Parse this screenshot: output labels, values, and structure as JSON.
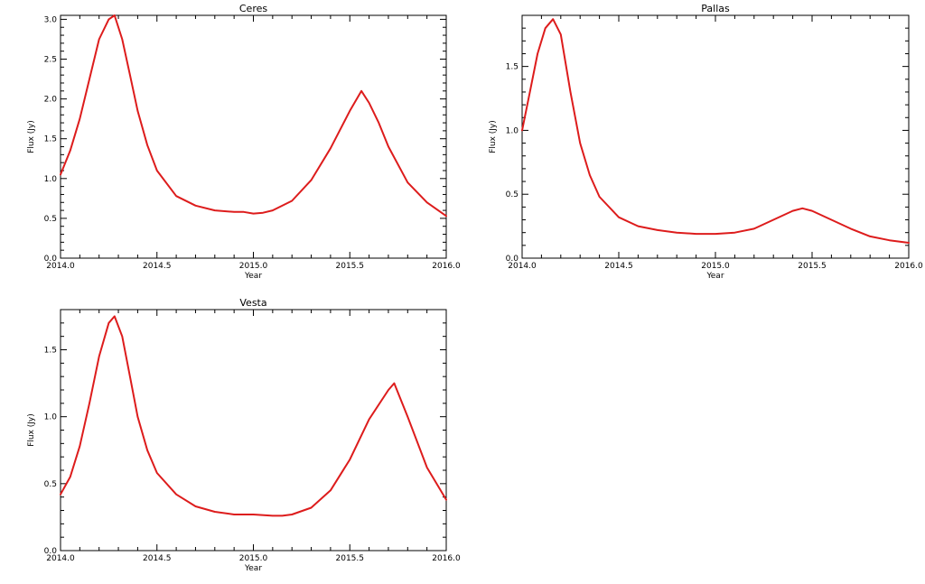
{
  "chart_data": [
    {
      "type": "line",
      "title": "Ceres",
      "xlabel": "Year",
      "ylabel": "Flux (Jy)",
      "xlim": [
        2014.0,
        2016.0
      ],
      "ylim": [
        0.0,
        3.05
      ],
      "xticks": [
        "2014.0",
        "2014.5",
        "2015.0",
        "2015.5",
        "2016.0"
      ],
      "yticks": [
        "0.0",
        "0.5",
        "1.0",
        "1.5",
        "2.0",
        "2.5",
        "3.0"
      ],
      "color": "#dd1c1c",
      "series": [
        {
          "x": [
            2014.0,
            2014.05,
            2014.1,
            2014.15,
            2014.2,
            2014.25,
            2014.28,
            2014.32,
            2014.36,
            2014.4,
            2014.45,
            2014.5,
            2014.6,
            2014.7,
            2014.8,
            2014.9,
            2014.95,
            2015.0,
            2015.05,
            2015.1,
            2015.2,
            2015.3,
            2015.4,
            2015.5,
            2015.56,
            2015.6,
            2015.65,
            2015.7,
            2015.8,
            2015.9,
            2016.0
          ],
          "y": [
            1.05,
            1.35,
            1.75,
            2.25,
            2.75,
            3.0,
            3.05,
            2.75,
            2.3,
            1.85,
            1.42,
            1.1,
            0.78,
            0.66,
            0.6,
            0.58,
            0.58,
            0.56,
            0.57,
            0.6,
            0.72,
            0.98,
            1.38,
            1.85,
            2.1,
            1.95,
            1.7,
            1.4,
            0.95,
            0.7,
            0.53
          ]
        }
      ]
    },
    {
      "type": "line",
      "title": "Pallas",
      "xlabel": "Year",
      "ylabel": "Flux (Jy)",
      "xlim": [
        2014.0,
        2016.0
      ],
      "ylim": [
        0.0,
        1.9
      ],
      "xticks": [
        "2014.0",
        "2014.5",
        "2015.0",
        "2015.5",
        "2016.0"
      ],
      "yticks": [
        "0.0",
        "0.5",
        "1.0",
        "1.5"
      ],
      "color": "#dd1c1c",
      "series": [
        {
          "x": [
            2014.0,
            2014.04,
            2014.08,
            2014.12,
            2014.16,
            2014.2,
            2014.25,
            2014.3,
            2014.35,
            2014.4,
            2014.5,
            2014.6,
            2014.7,
            2014.8,
            2014.9,
            2015.0,
            2015.1,
            2015.2,
            2015.3,
            2015.4,
            2015.45,
            2015.5,
            2015.6,
            2015.7,
            2015.8,
            2015.9,
            2016.0
          ],
          "y": [
            1.0,
            1.3,
            1.6,
            1.8,
            1.87,
            1.75,
            1.3,
            0.9,
            0.65,
            0.48,
            0.32,
            0.25,
            0.22,
            0.2,
            0.19,
            0.19,
            0.2,
            0.23,
            0.3,
            0.37,
            0.39,
            0.37,
            0.3,
            0.23,
            0.17,
            0.14,
            0.12
          ]
        }
      ]
    },
    {
      "type": "line",
      "title": "Vesta",
      "xlabel": "Year",
      "ylabel": "Flux (Jy)",
      "xlim": [
        2014.0,
        2016.0
      ],
      "ylim": [
        0.0,
        1.8
      ],
      "xticks": [
        "2014.0",
        "2014.5",
        "2015.0",
        "2015.5",
        "2016.0"
      ],
      "yticks": [
        "0.0",
        "0.5",
        "1.0",
        "1.5"
      ],
      "color": "#dd1c1c",
      "series": [
        {
          "x": [
            2014.0,
            2014.05,
            2014.1,
            2014.15,
            2014.2,
            2014.25,
            2014.28,
            2014.32,
            2014.36,
            2014.4,
            2014.45,
            2014.5,
            2014.6,
            2014.7,
            2014.8,
            2014.9,
            2015.0,
            2015.1,
            2015.15,
            2015.2,
            2015.3,
            2015.4,
            2015.5,
            2015.6,
            2015.7,
            2015.73,
            2015.8,
            2015.9,
            2016.0
          ],
          "y": [
            0.42,
            0.55,
            0.78,
            1.1,
            1.45,
            1.7,
            1.75,
            1.6,
            1.3,
            1.0,
            0.75,
            0.58,
            0.42,
            0.33,
            0.29,
            0.27,
            0.27,
            0.26,
            0.26,
            0.27,
            0.32,
            0.45,
            0.68,
            0.98,
            1.2,
            1.25,
            1.0,
            0.62,
            0.38
          ]
        }
      ]
    }
  ]
}
